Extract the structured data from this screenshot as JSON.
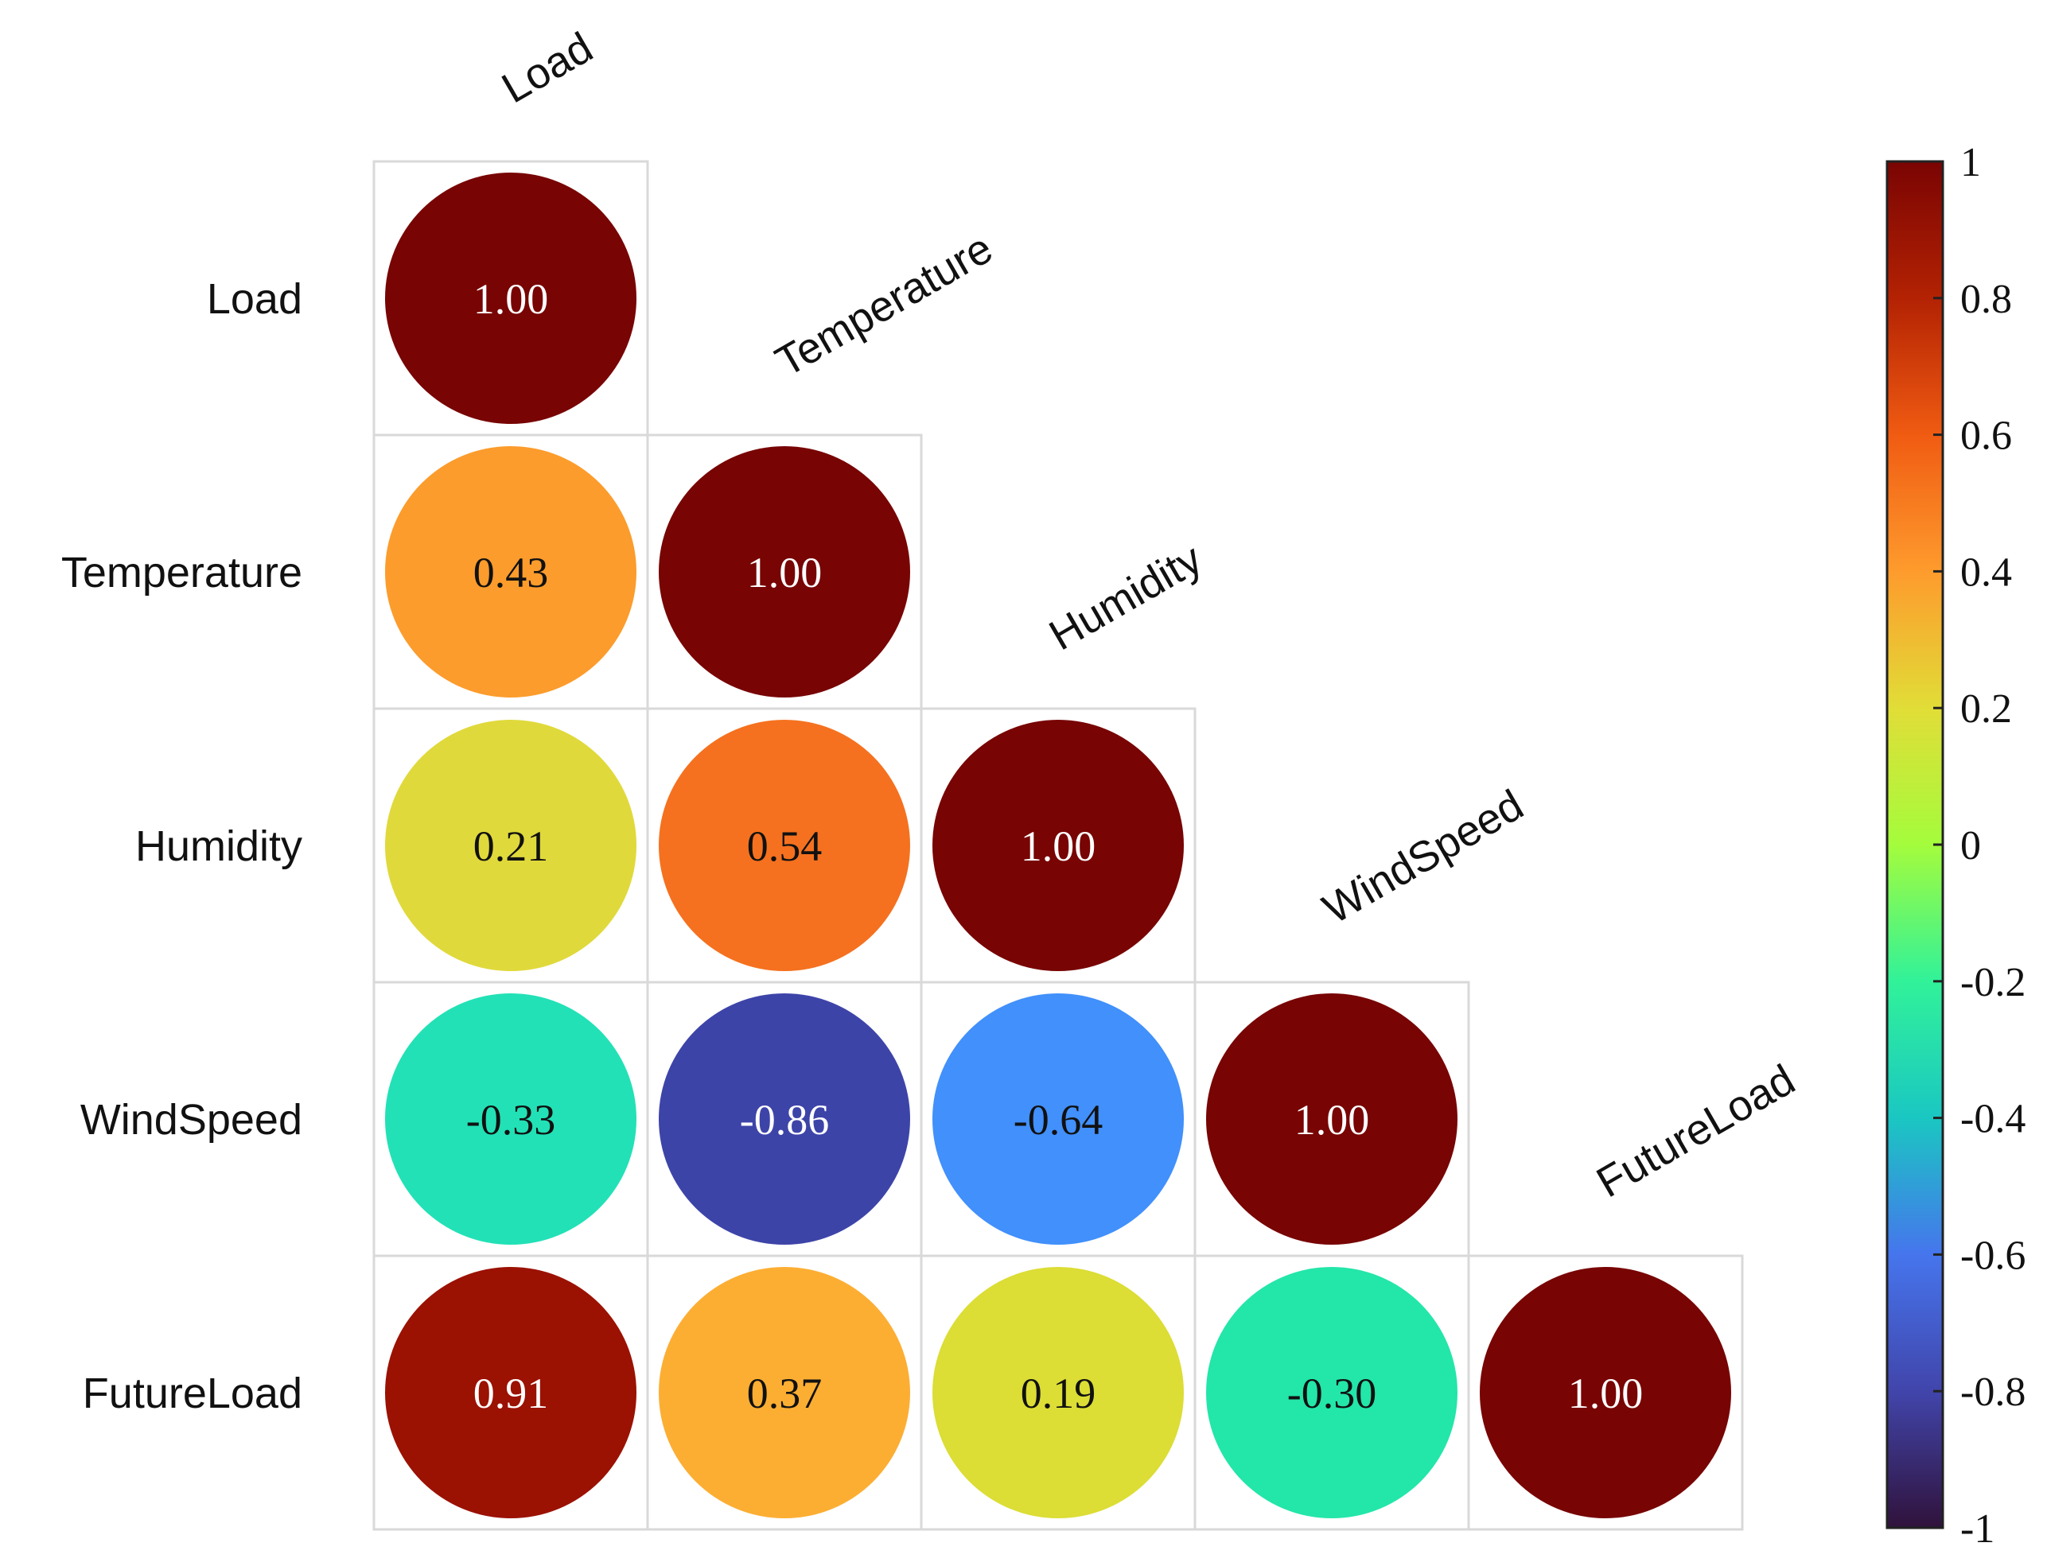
{
  "chart_data": {
    "type": "heatmap",
    "title": "",
    "variables": [
      "Load",
      "Temperature",
      "Humidity",
      "WindSpeed",
      "FutureLoad"
    ],
    "matrix": [
      [
        1.0,
        null,
        null,
        null,
        null
      ],
      [
        0.43,
        1.0,
        null,
        null,
        null
      ],
      [
        0.21,
        0.54,
        1.0,
        null,
        null
      ],
      [
        -0.33,
        -0.86,
        -0.64,
        1.0,
        null
      ],
      [
        0.91,
        0.37,
        0.19,
        -0.3,
        1.0
      ]
    ],
    "value_labels": [
      [
        "1.00",
        "",
        "",
        "",
        ""
      ],
      [
        "0.43",
        "1.00",
        "",
        "",
        ""
      ],
      [
        "0.21",
        "0.54",
        "1.00",
        "",
        ""
      ],
      [
        "-0.33",
        "-0.86",
        "-0.64",
        "1.00",
        ""
      ],
      [
        "0.91",
        "0.37",
        "0.19",
        "-0.30",
        "1.00"
      ]
    ],
    "cell_colors": [
      [
        "#780404",
        null,
        null,
        null,
        null
      ],
      [
        "#fc9c2c",
        "#780404",
        null,
        null,
        null
      ],
      [
        "#e0d93b",
        "#f5711f",
        "#780404",
        null,
        null
      ],
      [
        "#22e1b6",
        "#3d44a8",
        "#4190fb",
        "#780404",
        null
      ],
      [
        "#9b1102",
        "#fcae33",
        "#dcdd35",
        "#23e6a9",
        "#780404"
      ]
    ],
    "marker": "circle",
    "triangle": "lower",
    "colorbar": {
      "range": [
        -1,
        1
      ],
      "ticks": [
        "1",
        "0.8",
        "0.6",
        "0.4",
        "0.2",
        "0",
        "-0.2",
        "-0.4",
        "-0.6",
        "-0.8",
        "-1"
      ],
      "tick_values": [
        1,
        0.8,
        0.6,
        0.4,
        0.2,
        0,
        -0.2,
        -0.4,
        -0.6,
        -0.8,
        -1
      ],
      "colormap": "turbo",
      "stops": [
        {
          "v": -1.0,
          "color": "#30123b"
        },
        {
          "v": -0.8,
          "color": "#4145ab"
        },
        {
          "v": -0.6,
          "color": "#4675ed"
        },
        {
          "v": -0.4,
          "color": "#1ac7c2"
        },
        {
          "v": -0.2,
          "color": "#31f299"
        },
        {
          "v": 0.0,
          "color": "#a4fc3c"
        },
        {
          "v": 0.2,
          "color": "#e1dd37"
        },
        {
          "v": 0.4,
          "color": "#fe9b2d"
        },
        {
          "v": 0.6,
          "color": "#f05b12"
        },
        {
          "v": 0.8,
          "color": "#b32203"
        },
        {
          "v": 1.0,
          "color": "#7a0403"
        }
      ],
      "placement": "right"
    },
    "grid": false,
    "legend": "colorbar-right"
  }
}
